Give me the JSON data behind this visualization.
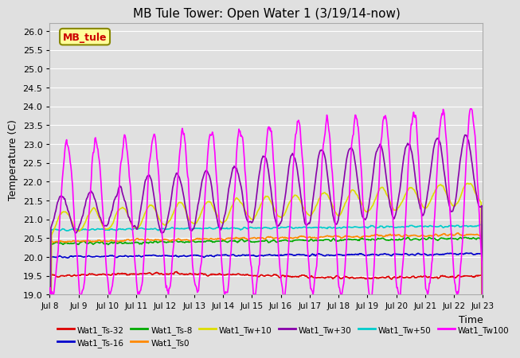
{
  "title": "MB Tule Tower: Open Water 1 (3/19/14-now)",
  "xlabel": "Time",
  "ylabel": "Temperature (C)",
  "ylim": [
    19.0,
    26.2
  ],
  "yticks": [
    19.0,
    19.5,
    20.0,
    20.5,
    21.0,
    21.5,
    22.0,
    22.5,
    23.0,
    23.5,
    24.0,
    24.5,
    25.0,
    25.5,
    26.0
  ],
  "x_labels": [
    "Jul 8",
    "Jul 9",
    "Jul 10",
    "Jul 11",
    "Jul 12",
    "Jul 13",
    "Jul 14",
    "Jul 15",
    "Jul 16",
    "Jul 17",
    "Jul 18",
    "Jul 19",
    "Jul 20",
    "Jul 21",
    "Jul 22",
    "Jul 23"
  ],
  "annotation": {
    "text": "MB_tule",
    "bgcolor": "#ffff99",
    "edgecolor": "#888800",
    "textcolor": "#cc0000",
    "fontsize": 9
  },
  "background_color": "#e0e0e0",
  "grid_color": "#ffffff",
  "title_fontsize": 11,
  "series_colors": {
    "Wat1_Ts-32": "#dd0000",
    "Wat1_Ts-16": "#0000cc",
    "Wat1_Ts-8": "#00aa00",
    "Wat1_Ts0": "#ff8800",
    "Wat1_Tw+10": "#dddd00",
    "Wat1_Tw+30": "#8800aa",
    "Wat1_Tw+50": "#00cccc",
    "Wat1_Tw100": "#ff00ff"
  },
  "legend_order": [
    "Wat1_Ts-32",
    "Wat1_Ts-16",
    "Wat1_Ts-8",
    "Wat1_Ts0",
    "Wat1_Tw+10",
    "Wat1_Tw+30",
    "Wat1_Tw+50",
    "Wat1_Tw100"
  ]
}
